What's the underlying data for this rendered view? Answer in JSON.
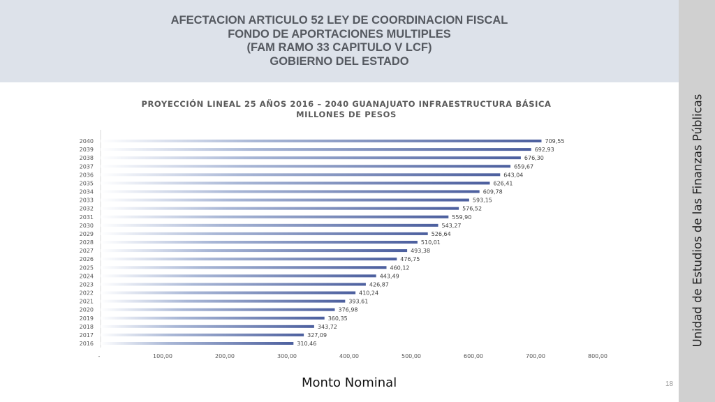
{
  "header": {
    "lines": [
      "AFECTACION ARTICULO 52 LEY DE COORDINACION FISCAL",
      "FONDO DE APORTACIONES MULTIPLES",
      "(FAM RAMO 33 CAPITULO V LCF)",
      "GOBIERNO DEL ESTADO"
    ]
  },
  "sidebar": {
    "text": "Unidad de Estudios de las Finanzas Públicas"
  },
  "footer": {
    "label": "Monto Nominal",
    "page_number": "18"
  },
  "colors": {
    "bar": "#5a6fa8",
    "header_bg": "#dde2ea",
    "sidebar_bg": "#d0d0d0"
  },
  "chart_data": {
    "type": "bar",
    "orientation": "horizontal",
    "title_lines": [
      "PROYECCIÓN LINEAL 25 AÑOS 2016 – 2040 GUANAJUATO  INFRAESTRUCTURA BÁSICA",
      "MILLONES DE PESOS"
    ],
    "categories": [
      "2016",
      "2017",
      "2018",
      "2019",
      "2020",
      "2021",
      "2022",
      "2023",
      "2024",
      "2025",
      "2026",
      "2027",
      "2028",
      "2029",
      "2030",
      "2031",
      "2032",
      "2033",
      "2034",
      "2035",
      "2036",
      "2037",
      "2038",
      "2039",
      "2040"
    ],
    "values": [
      310.46,
      327.09,
      343.72,
      360.35,
      376.98,
      393.61,
      410.24,
      426.87,
      443.49,
      460.12,
      476.75,
      493.38,
      510.01,
      526.64,
      543.27,
      559.9,
      576.52,
      593.15,
      609.78,
      626.41,
      643.04,
      659.67,
      676.3,
      692.93,
      709.55
    ],
    "value_labels": [
      "310,46",
      "327,09",
      "343,72",
      "360,35",
      "376,98",
      "393,61",
      "410,24",
      "426,87",
      "443,49",
      "460,12",
      "476,75",
      "493,38",
      "510,01",
      "526,64",
      "543,27",
      "559,90",
      "576,52",
      "593,15",
      "609,78",
      "626,41",
      "643,04",
      "659,67",
      "676,30",
      "692,93",
      "709,55"
    ],
    "x_ticks": [
      0,
      100,
      200,
      300,
      400,
      500,
      600,
      700,
      800
    ],
    "x_tick_labels": [
      "-",
      "100,00",
      "200,00",
      "300,00",
      "400,00",
      "500,00",
      "600,00",
      "700,00",
      "800,00"
    ],
    "xlim": [
      0,
      800
    ],
    "grid": false,
    "legend": "none"
  }
}
